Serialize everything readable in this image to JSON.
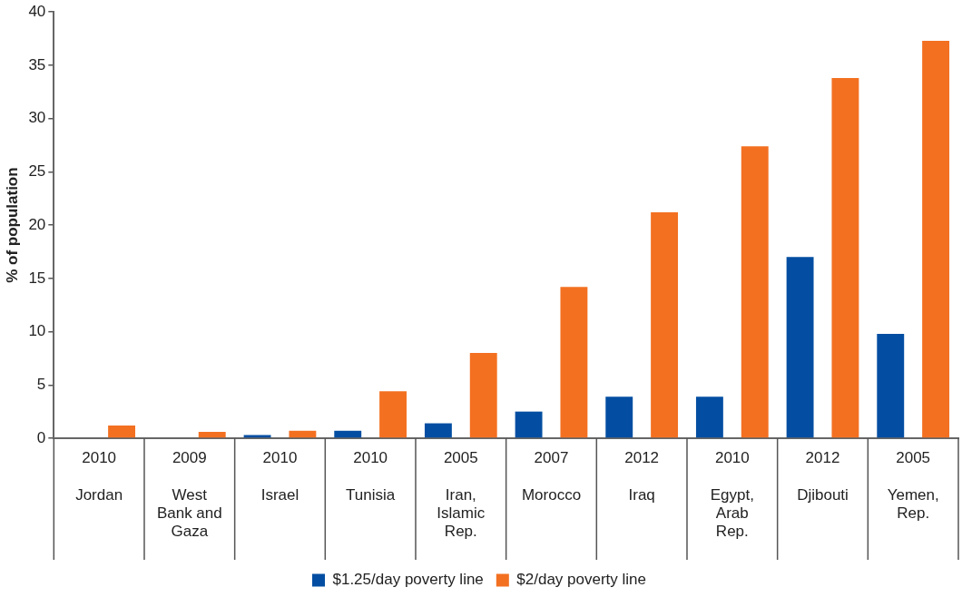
{
  "chart_data": {
    "type": "bar",
    "ylabel": "% of population",
    "categories": [
      "2010\nJordan",
      "2009\nWest\nBank and\nGaza",
      "2010\nIsrael",
      "2010\nTunisia",
      "2005\nIran,\nIslamic\nRep.",
      "2007\nMorocco",
      "2012\nIraq",
      "2010\nEgypt,\nArab\nRep.",
      "2012\nDjibouti",
      "2005\nYemen,\nRep."
    ],
    "series": [
      {
        "name": "$1.25/day poverty line",
        "color": "#034ea2",
        "values": [
          0,
          0,
          0.3,
          0.7,
          1.4,
          2.5,
          3.9,
          3.9,
          17.0,
          9.8
        ]
      },
      {
        "name": "$2/day poverty line",
        "color": "#f37021",
        "values": [
          1.2,
          0.6,
          0.7,
          4.4,
          8.0,
          14.2,
          21.2,
          27.4,
          33.8,
          37.3
        ]
      }
    ],
    "ylim": [
      0,
      40
    ],
    "yticks": [
      0,
      5,
      10,
      15,
      20,
      25,
      30,
      35,
      40
    ],
    "grid": false,
    "legend": "bottom"
  }
}
